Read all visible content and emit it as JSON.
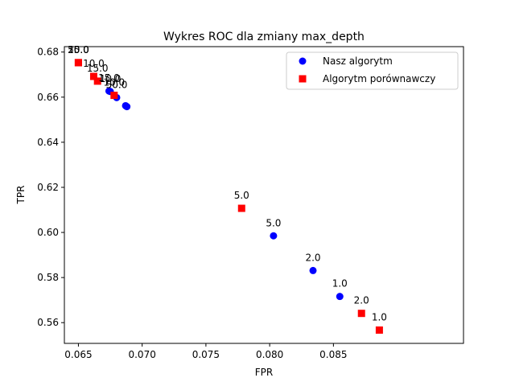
{
  "chart_data": {
    "type": "scatter",
    "title": "Wykres ROC dla zmiany max_depth",
    "xlabel": "FPR",
    "ylabel": "TPR",
    "xlim": [
      0.0639,
      0.0952
    ],
    "ylim": [
      0.5508,
      0.6824
    ],
    "xticks": [
      0.065,
      0.07,
      0.075,
      0.08,
      0.085
    ],
    "xtick_labels": [
      "0.065",
      "0.070",
      "0.075",
      "0.080",
      "0.085"
    ],
    "yticks": [
      0.56,
      0.58,
      0.6,
      0.62,
      0.64,
      0.66,
      0.68
    ],
    "ytick_labels": [
      "0.56",
      "0.58",
      "0.60",
      "0.62",
      "0.64",
      "0.66",
      "0.68"
    ],
    "grid": false,
    "legend_position": "top-right",
    "series": [
      {
        "name": "Nasz algorytm",
        "marker": "circle",
        "color": "#0000ff",
        "points": [
          {
            "x": 0.0674,
            "y": 0.6627,
            "label": "15.0"
          },
          {
            "x": 0.0675,
            "y": 0.6625,
            "label": "10.0"
          },
          {
            "x": 0.068,
            "y": 0.6598,
            "label": "50.0"
          },
          {
            "x": 0.0687,
            "y": 0.6562,
            "label": ""
          },
          {
            "x": 0.0688,
            "y": 0.6558,
            "label": ""
          },
          {
            "x": 0.0803,
            "y": 0.5985,
            "label": "5.0"
          },
          {
            "x": 0.0834,
            "y": 0.5831,
            "label": "2.0"
          },
          {
            "x": 0.0855,
            "y": 0.5716,
            "label": "1.0"
          }
        ]
      },
      {
        "name": "Algorytm porównawczy",
        "marker": "square",
        "color": "#ff0000",
        "points": [
          {
            "x": 0.065,
            "y": 0.6753,
            "label": "10.0"
          },
          {
            "x": 0.065,
            "y": 0.6753,
            "label": "50.0"
          },
          {
            "x": 0.065,
            "y": 0.6753,
            "label": "25.0"
          },
          {
            "x": 0.0662,
            "y": 0.6692,
            "label": "10.0"
          },
          {
            "x": 0.0665,
            "y": 0.6671,
            "label": "15.0"
          },
          {
            "x": 0.0678,
            "y": 0.6608,
            "label": "10.0"
          },
          {
            "x": 0.0778,
            "y": 0.6107,
            "label": "5.0"
          },
          {
            "x": 0.0872,
            "y": 0.5641,
            "label": "2.0"
          },
          {
            "x": 0.0886,
            "y": 0.5567,
            "label": "1.0"
          }
        ]
      }
    ]
  }
}
